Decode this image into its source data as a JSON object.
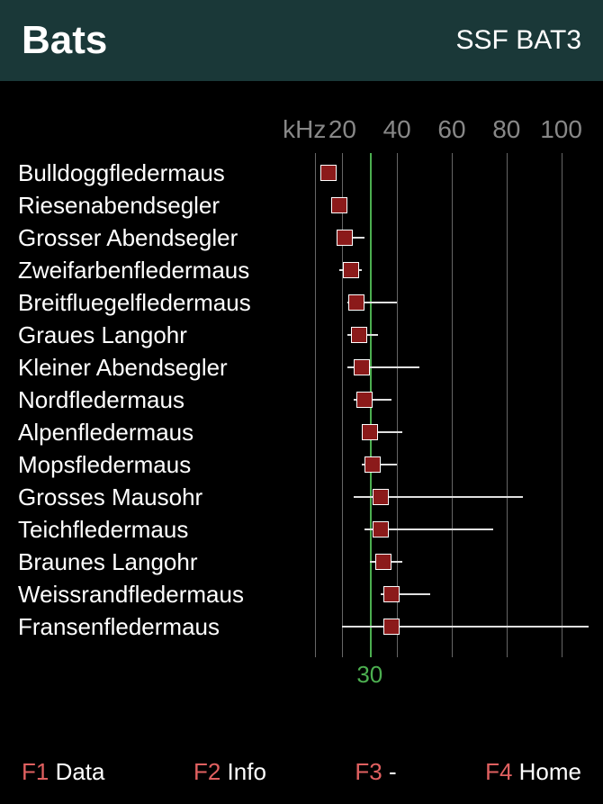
{
  "header": {
    "title": "Bats",
    "subtitle": "SSF BAT3"
  },
  "chart": {
    "unit_label": "kHz",
    "x_axis": {
      "min": 10,
      "max": 110,
      "tick_start": 20,
      "tick_step": 20,
      "ticks": [
        20,
        40,
        60,
        80,
        100
      ]
    },
    "indicator": {
      "value": 30,
      "label": "30",
      "color": "#4caf50"
    },
    "label_col_width": 350,
    "grid_color": "#666666",
    "marker_color": "#8b1a1a",
    "marker_border": "#ffffff",
    "whisker_color": "#e0e0e0",
    "label_fontsize": 26,
    "tick_fontsize": 28,
    "background": "#000000",
    "rows": [
      {
        "label": "Bulldoggfledermaus",
        "lo": 12,
        "mid": 15,
        "hi": 18
      },
      {
        "label": "Riesenabendsegler",
        "lo": 16,
        "mid": 19,
        "hi": 22
      },
      {
        "label": "Grosser Abendsegler",
        "lo": 18,
        "mid": 21,
        "hi": 28
      },
      {
        "label": "Zweifarbenfledermaus",
        "lo": 19,
        "mid": 23,
        "hi": 27
      },
      {
        "label": "Breitfluegelfledermaus",
        "lo": 22,
        "mid": 25,
        "hi": 40
      },
      {
        "label": "Graues Langohr",
        "lo": 22,
        "mid": 26,
        "hi": 33
      },
      {
        "label": "Kleiner Abendsegler",
        "lo": 22,
        "mid": 27,
        "hi": 48
      },
      {
        "label": "Nordfledermaus",
        "lo": 24,
        "mid": 28,
        "hi": 38
      },
      {
        "label": "Alpenfledermaus",
        "lo": 27,
        "mid": 30,
        "hi": 42
      },
      {
        "label": "Mopsfledermaus",
        "lo": 27,
        "mid": 31,
        "hi": 40
      },
      {
        "label": "Grosses Mausohr",
        "lo": 24,
        "mid": 34,
        "hi": 86
      },
      {
        "label": "Teichfledermaus",
        "lo": 28,
        "mid": 34,
        "hi": 75
      },
      {
        "label": "Braunes Langohr",
        "lo": 30,
        "mid": 35,
        "hi": 42
      },
      {
        "label": "Weissrandfledermaus",
        "lo": 34,
        "mid": 38,
        "hi": 52
      },
      {
        "label": "Fransenfledermaus",
        "lo": 20,
        "mid": 38,
        "hi": 110
      }
    ]
  },
  "footer": {
    "keys": [
      {
        "fn": "F1",
        "label": "Data"
      },
      {
        "fn": "F2",
        "label": "Info"
      },
      {
        "fn": "F3",
        "label": "-"
      },
      {
        "fn": "F4",
        "label": "Home"
      }
    ]
  }
}
